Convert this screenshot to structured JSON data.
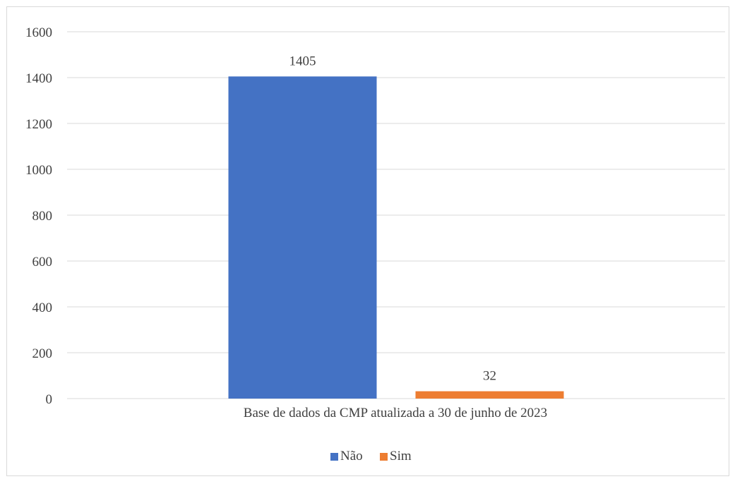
{
  "chart_data": {
    "type": "bar",
    "categories": [
      "Base de dados da CMP atualizada a 30 de junho de 2023"
    ],
    "series": [
      {
        "name": "Não",
        "values": [
          1405
        ],
        "color": "#4472c4"
      },
      {
        "name": "Sim",
        "values": [
          32
        ],
        "color": "#ed7d31"
      }
    ],
    "ylim": [
      0,
      1600
    ],
    "yticks": [
      0,
      200,
      400,
      600,
      800,
      1000,
      1200,
      1400,
      1600
    ],
    "data_labels": [
      "1405",
      "32"
    ],
    "grid": true,
    "legend_position": "bottom",
    "gridline_color": "#d9d9d9",
    "text_color": "#404040"
  }
}
